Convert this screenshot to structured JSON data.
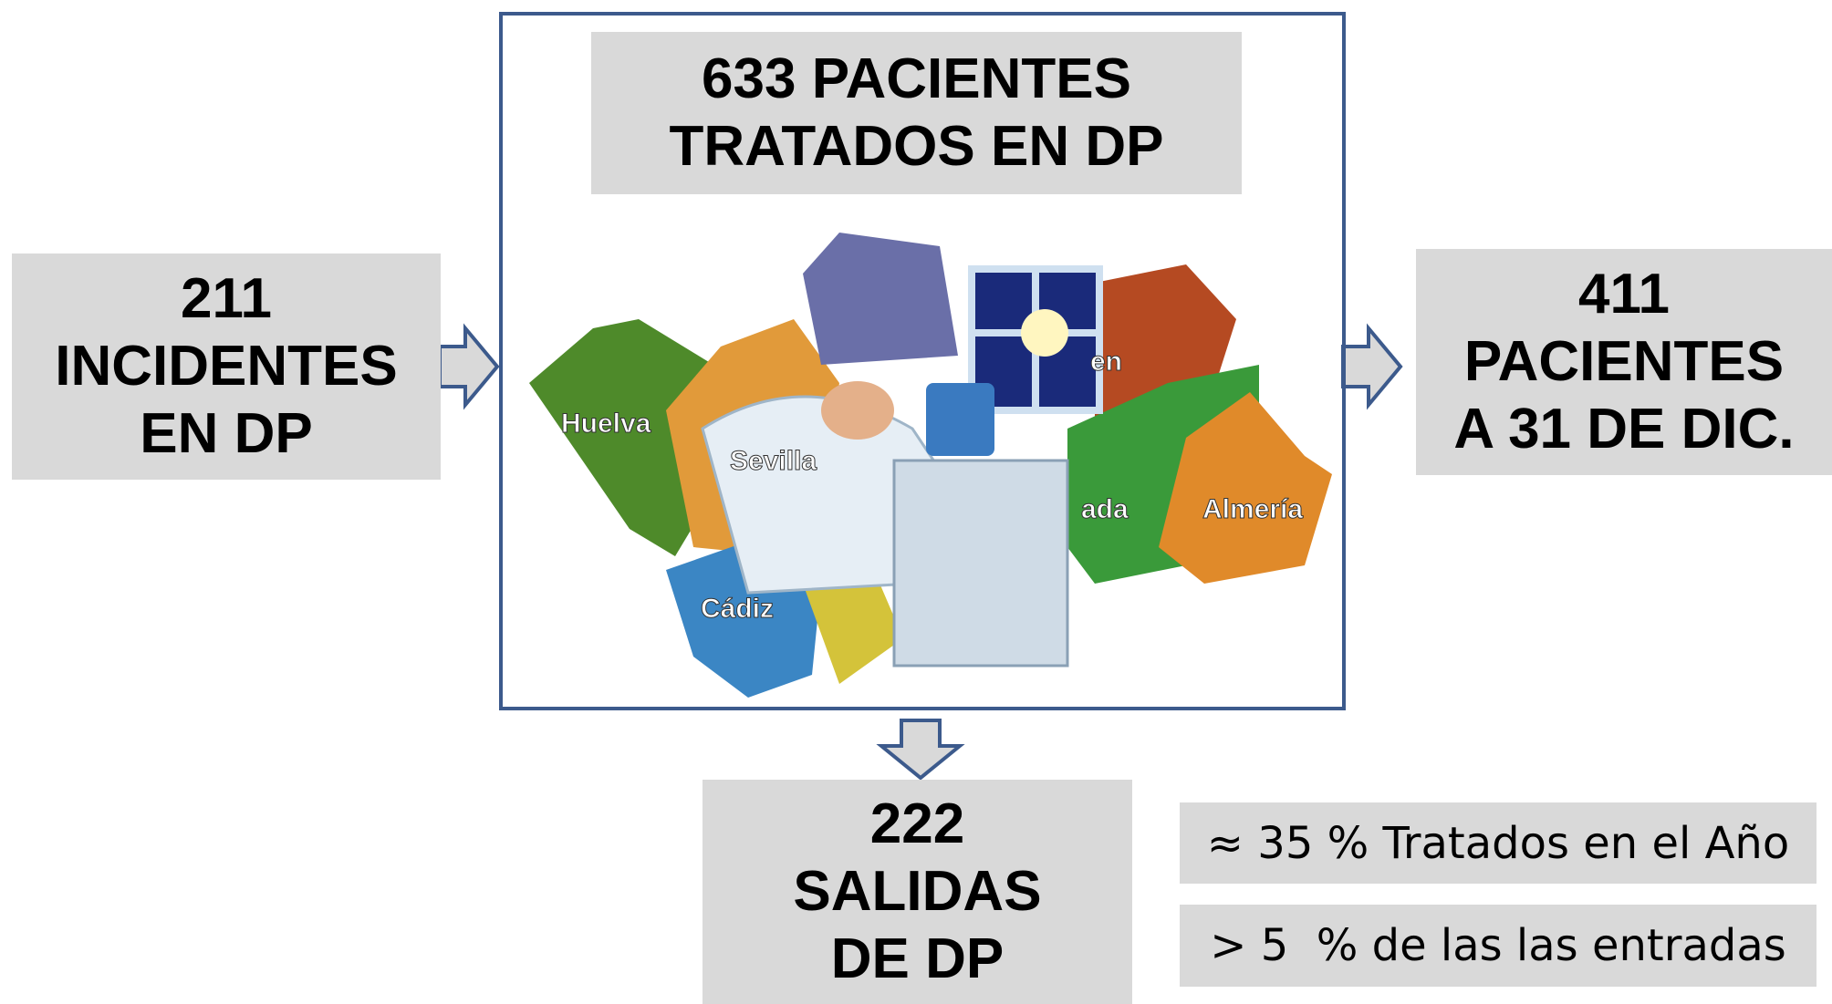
{
  "incidentes": {
    "lines": [
      "211",
      "INCIDENTES",
      "EN DP"
    ]
  },
  "tratados": {
    "lines": [
      "633 PACIENTES",
      "TRATADOS EN DP"
    ]
  },
  "pacientes": {
    "lines": [
      "411",
      "PACIENTES",
      "A 31 DE DIC."
    ]
  },
  "salidas": {
    "lines": [
      "222",
      "SALIDAS",
      "DE DP"
    ]
  },
  "notes": [
    "≈ 35 % Tratados en el Año",
    "> 5  % de las las entradas"
  ],
  "map_labels": [
    "Huelva",
    "Sevilla",
    "Cádiz",
    "Almería",
    "en",
    "ada"
  ]
}
